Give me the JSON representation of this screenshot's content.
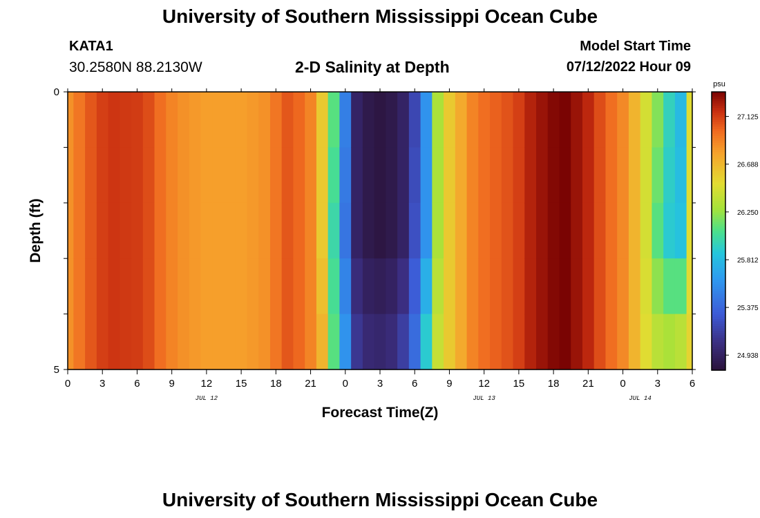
{
  "title": "University of Southern Mississippi Ocean Cube",
  "footer_title": "University of Southern Mississippi Ocean Cube",
  "station": {
    "name": "KATA1",
    "coords": "30.2580N  88.2130W"
  },
  "model": {
    "label": "Model Start Time",
    "value": "07/12/2022 Hour 09"
  },
  "chart_data": {
    "type": "heatmap",
    "title": "2-D Salinity at Depth",
    "xlabel": "Forecast Time(Z)",
    "ylabel": "Depth (ft)",
    "x_ticks": [
      "0",
      "3",
      "6",
      "9",
      "12",
      "15",
      "18",
      "21",
      "0",
      "3",
      "6",
      "9",
      "12",
      "15",
      "18",
      "21",
      "0",
      "3",
      "6"
    ],
    "date_labels": [
      "JUL 12",
      "JUL 13",
      "JUL 14"
    ],
    "y_ticks": [
      "0",
      "5"
    ],
    "ylim": [
      0,
      5
    ],
    "x_range_hours": [
      0,
      54
    ],
    "colorbar": {
      "unit": "psu",
      "min": 24.8,
      "max": 27.35,
      "tick_values": [
        24.938,
        25.375,
        25.812,
        26.25,
        26.688,
        27.125
      ],
      "tick_labels": [
        "24.938",
        "25.375",
        "25.812",
        "26.250",
        "26.688",
        "27.125"
      ]
    },
    "salinity_profile": {
      "hours": [
        0,
        1,
        2,
        3,
        4,
        5,
        6,
        7,
        8,
        9,
        10,
        11,
        12,
        13,
        14,
        15,
        16,
        17,
        18,
        19,
        20,
        21,
        22,
        23,
        24,
        25,
        26,
        27,
        28,
        29,
        30,
        31,
        32,
        33,
        34,
        35,
        36,
        37,
        38,
        39,
        40,
        41,
        42,
        43,
        44,
        45,
        46,
        47,
        48,
        49,
        50,
        51,
        52,
        53,
        54
      ],
      "surface": [
        26.85,
        26.95,
        27.05,
        27.12,
        27.15,
        27.14,
        27.13,
        27.08,
        26.98,
        26.9,
        26.85,
        26.82,
        26.8,
        26.8,
        26.8,
        26.8,
        26.82,
        26.85,
        26.95,
        27.05,
        27.0,
        26.9,
        26.6,
        26.1,
        25.5,
        24.95,
        24.86,
        24.83,
        24.86,
        24.95,
        25.2,
        25.6,
        26.3,
        26.6,
        26.75,
        26.9,
        26.98,
        27.02,
        27.06,
        27.12,
        27.22,
        27.28,
        27.33,
        27.35,
        27.28,
        27.2,
        27.08,
        26.98,
        26.88,
        26.7,
        26.45,
        26.2,
        25.95,
        25.8,
        26.5
      ],
      "mid": [
        26.85,
        26.95,
        27.05,
        27.12,
        27.15,
        27.14,
        27.13,
        27.08,
        26.98,
        26.9,
        26.85,
        26.82,
        26.8,
        26.8,
        26.8,
        26.8,
        26.82,
        26.85,
        26.95,
        27.05,
        27.0,
        26.9,
        26.6,
        26.0,
        25.45,
        24.95,
        24.86,
        24.83,
        24.86,
        24.95,
        25.25,
        25.6,
        26.3,
        26.6,
        26.75,
        26.9,
        26.98,
        27.02,
        27.06,
        27.12,
        27.22,
        27.28,
        27.33,
        27.35,
        27.28,
        27.2,
        27.08,
        26.98,
        26.88,
        26.7,
        26.45,
        26.1,
        25.9,
        25.85,
        26.5
      ],
      "bottom": [
        26.85,
        26.95,
        27.05,
        27.12,
        27.15,
        27.14,
        27.13,
        27.08,
        26.98,
        26.9,
        26.85,
        26.82,
        26.8,
        26.8,
        26.8,
        26.8,
        26.82,
        26.85,
        26.95,
        27.05,
        27.0,
        26.9,
        26.7,
        26.1,
        25.6,
        25.1,
        25.0,
        24.98,
        25.02,
        25.15,
        25.4,
        25.9,
        26.4,
        26.6,
        26.75,
        26.9,
        26.98,
        27.02,
        27.06,
        27.12,
        27.22,
        27.28,
        27.33,
        27.35,
        27.28,
        27.2,
        27.08,
        26.98,
        26.88,
        26.7,
        26.5,
        26.35,
        26.3,
        26.35,
        26.55
      ]
    }
  }
}
